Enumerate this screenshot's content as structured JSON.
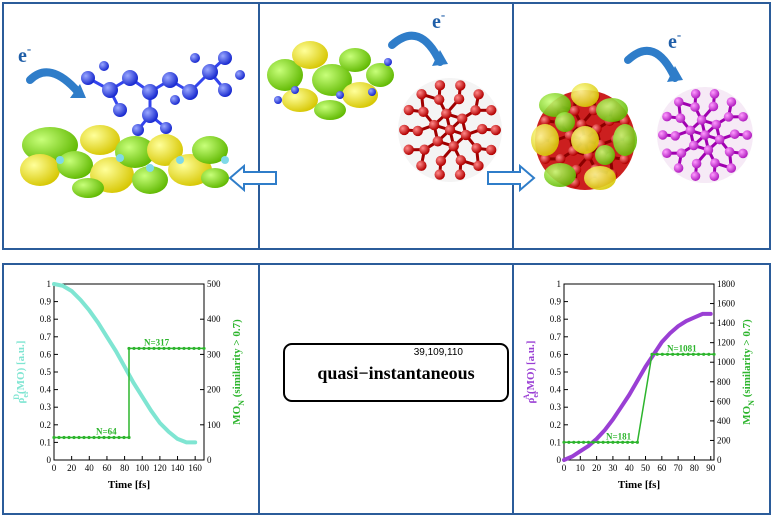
{
  "electron_label": "e",
  "electron_sup": "-",
  "center_text": "quasi−instantaneous",
  "center_ref": "39,109,110",
  "chart_data": [
    {
      "type": "line",
      "x": [
        0,
        10,
        20,
        30,
        40,
        50,
        60,
        70,
        80,
        90,
        100,
        110,
        120,
        130,
        140,
        150,
        160
      ],
      "series": [
        {
          "values": [
            1.0,
            0.99,
            0.96,
            0.91,
            0.85,
            0.78,
            0.7,
            0.62,
            0.53,
            0.44,
            0.36,
            0.28,
            0.21,
            0.16,
            0.12,
            0.1,
            0.1
          ],
          "axis": "left",
          "color": "#7fe5d2"
        },
        {
          "step_x": [
            0,
            85,
            85,
            170
          ],
          "step_values": [
            64,
            64,
            317,
            317
          ],
          "axis": "right",
          "color": "#2db52d"
        }
      ],
      "annotations": [
        "N=64",
        "N=317"
      ],
      "xlabel": "Time [fs]",
      "ylabel_left": "ρ",
      "ylabel_left_sup": "D",
      "ylabel_left_sub": "el",
      "ylabel_left_rest": "(MO) [a.u.]",
      "ylabel_right": "MO",
      "ylabel_right_sub": "N",
      "ylabel_right_rest": " (similarity > 0.7)",
      "xlim": [
        0,
        170
      ],
      "ylim_left": [
        0,
        1
      ],
      "ylim_right": [
        0,
        500
      ],
      "xticks": [
        0,
        20,
        40,
        60,
        80,
        100,
        120,
        140,
        160
      ],
      "yticks_left": [
        0,
        0.1,
        0.2,
        0.3,
        0.4,
        0.5,
        0.6,
        0.7,
        0.8,
        0.9,
        1
      ],
      "yticks_right": [
        0,
        100,
        200,
        300,
        400,
        500
      ]
    },
    {
      "type": "line",
      "x": [
        0,
        5,
        10,
        15,
        20,
        25,
        30,
        35,
        40,
        45,
        50,
        55,
        60,
        65,
        70,
        75,
        80,
        85,
        90
      ],
      "series": [
        {
          "values": [
            0.0,
            0.02,
            0.05,
            0.08,
            0.12,
            0.17,
            0.23,
            0.3,
            0.37,
            0.45,
            0.53,
            0.6,
            0.67,
            0.72,
            0.76,
            0.79,
            0.81,
            0.83,
            0.83
          ],
          "axis": "left",
          "color": "#9a3fd4"
        },
        {
          "step_x": [
            0,
            45,
            54,
            92
          ],
          "step_values": [
            181,
            181,
            1081,
            1081
          ],
          "axis": "right",
          "color": "#2db52d"
        }
      ],
      "annotations": [
        "N=181",
        "N=1081"
      ],
      "xlabel": "Time [fs]",
      "ylabel_left": "ρ",
      "ylabel_left_sup": "A",
      "ylabel_left_sub": "el",
      "ylabel_left_rest": "(MO) [a.u.]",
      "ylabel_right": "MO",
      "ylabel_right_sub": "N",
      "ylabel_right_rest": " (similarity > 0.7)",
      "xlim": [
        0,
        92
      ],
      "ylim_left": [
        0,
        1
      ],
      "ylim_right": [
        0,
        1800
      ],
      "xticks": [
        0,
        10,
        20,
        30,
        40,
        50,
        60,
        70,
        80,
        90
      ],
      "yticks_left": [
        0,
        0.1,
        0.2,
        0.3,
        0.4,
        0.5,
        0.6,
        0.7,
        0.8,
        0.9,
        1
      ],
      "yticks_right": [
        0,
        200,
        400,
        600,
        800,
        1000,
        1200,
        1400,
        1600,
        1800
      ]
    }
  ]
}
